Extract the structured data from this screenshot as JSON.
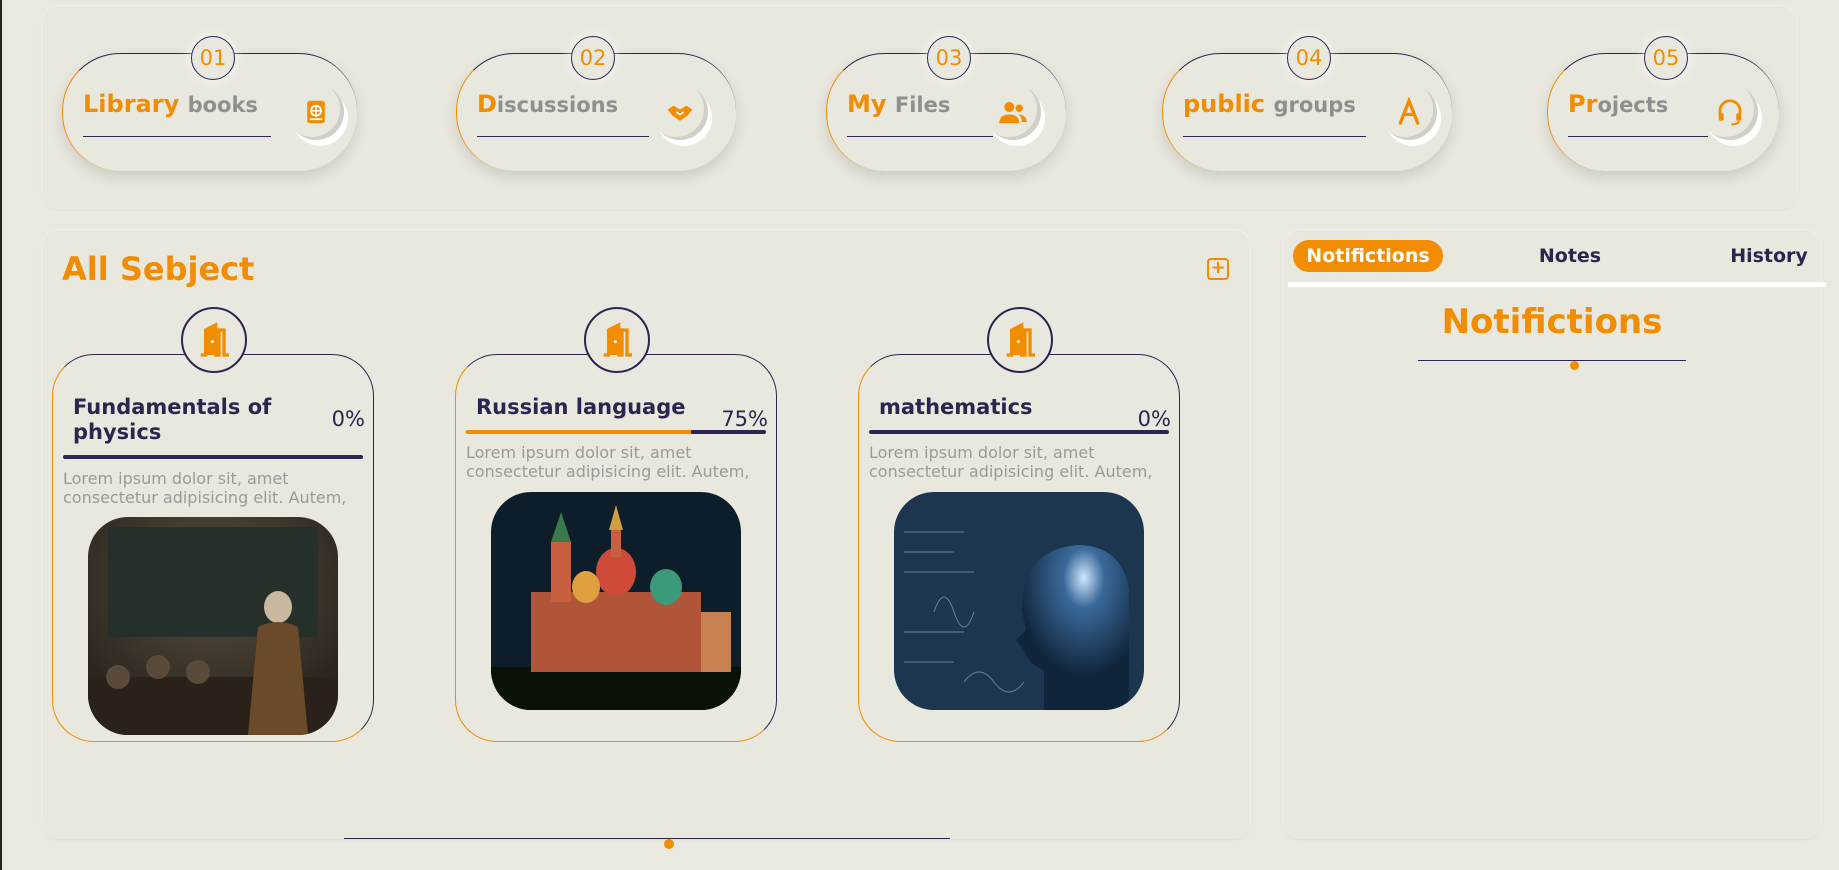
{
  "nav": [
    {
      "num": "01",
      "title_a": "Library",
      "title_b": "books",
      "icon": "book-globe-icon"
    },
    {
      "num": "02",
      "title_a": "D",
      "title_b": "iscussions",
      "icon": "handshake-icon"
    },
    {
      "num": "03",
      "title_a": "My",
      "title_b": "Files",
      "icon": "users-icon"
    },
    {
      "num": "04",
      "title_a": "public",
      "title_b": "groups",
      "icon": "letter-a-icon"
    },
    {
      "num": "05",
      "title_a": "Pr",
      "title_b": "ojects",
      "icon": "headset-icon"
    }
  ],
  "subjects": {
    "title": "All Sebject",
    "add_icon": "+",
    "cards": [
      {
        "title": "Fundamentals of physics",
        "percent": "0%",
        "progress": 0,
        "desc": "Lorem ipsum dolor sit, amet consectetur adipisicing elit. Autem,",
        "image": "physics-teacher-image"
      },
      {
        "title": "Russian language",
        "percent": "75%",
        "progress": 75,
        "desc": "Lorem ipsum dolor sit, amet consectetur adipisicing elit. Autem,",
        "image": "kremlin-image"
      },
      {
        "title": "mathematics",
        "percent": "0%",
        "progress": 0,
        "desc": "Lorem ipsum dolor sit, amet consectetur adipisicing elit. Autem,",
        "image": "math-silhouette-image"
      }
    ]
  },
  "notifications": {
    "tabs": [
      "Notifictions",
      "Notes",
      "History"
    ],
    "active_tab": "Notifictions",
    "heading": "Notifictions"
  },
  "colors": {
    "accent": "#f28c00",
    "primary": "#2b2550",
    "background": "#e9e9e1"
  }
}
